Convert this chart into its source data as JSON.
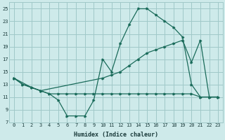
{
  "xlabel": "Humidex (Indice chaleur)",
  "bg_color": "#ceeaea",
  "grid_color": "#a0c8c8",
  "line_color": "#1a6b5a",
  "xlim": [
    -0.5,
    23.5
  ],
  "ylim": [
    7,
    26
  ],
  "yticks": [
    7,
    9,
    11,
    13,
    15,
    17,
    19,
    21,
    23,
    25
  ],
  "xticks": [
    0,
    1,
    2,
    3,
    4,
    5,
    6,
    7,
    8,
    9,
    10,
    11,
    12,
    13,
    14,
    15,
    16,
    17,
    18,
    19,
    20,
    21,
    22,
    23
  ],
  "series1_x": [
    0,
    1,
    2,
    3,
    4,
    5,
    6,
    7,
    8,
    9,
    10,
    11,
    12,
    13,
    14,
    15,
    16,
    17,
    18,
    19,
    20,
    21,
    22,
    23
  ],
  "series1_y": [
    14,
    13,
    12.5,
    12,
    11.5,
    10.5,
    8,
    8,
    8,
    10.5,
    17,
    15,
    19.5,
    22.5,
    25,
    25,
    24,
    23,
    22,
    20.5,
    13,
    11,
    11,
    11
  ],
  "series2_x": [
    0,
    2,
    3,
    10,
    11,
    12,
    13,
    14,
    15,
    16,
    17,
    18,
    19,
    20,
    21,
    22,
    23
  ],
  "series2_y": [
    14,
    12.5,
    12,
    14,
    14.5,
    15,
    16,
    17,
    18,
    18.5,
    19,
    19.5,
    20,
    16.5,
    20,
    11,
    11
  ],
  "series3_x": [
    0,
    1,
    2,
    3,
    4,
    5,
    6,
    7,
    8,
    9,
    10,
    11,
    12,
    13,
    14,
    15,
    16,
    17,
    18,
    19,
    20,
    21,
    22,
    23
  ],
  "series3_y": [
    14,
    13,
    12.5,
    12,
    11.5,
    11.5,
    11.5,
    11.5,
    11.5,
    11.5,
    11.5,
    11.5,
    11.5,
    11.5,
    11.5,
    11.5,
    11.5,
    11.5,
    11.5,
    11.5,
    11.5,
    11,
    11,
    11
  ]
}
